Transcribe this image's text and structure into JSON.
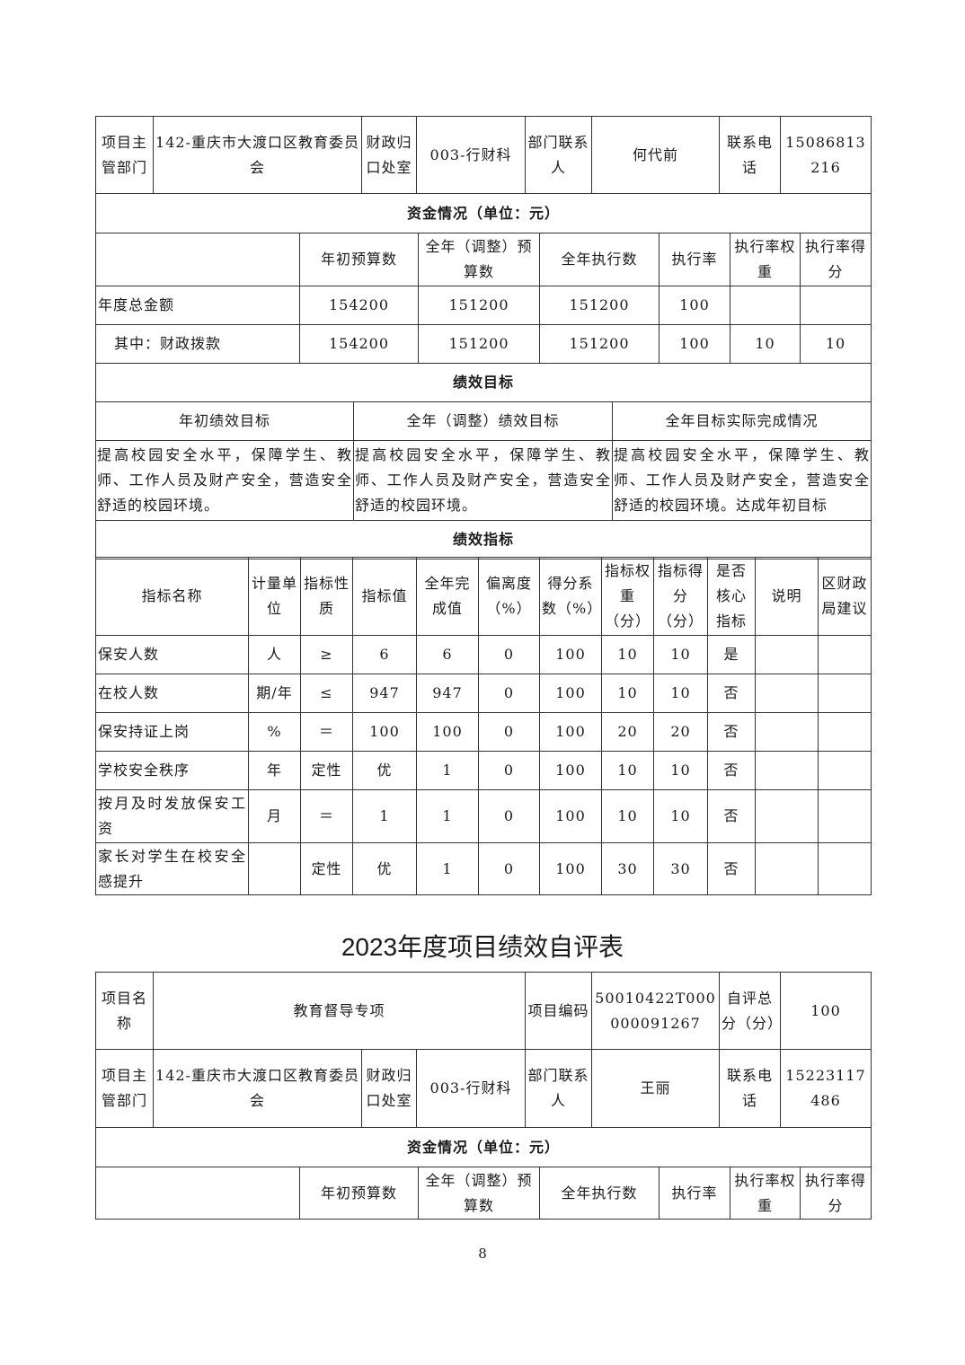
{
  "section1": {
    "dept_label": "项目主管部门",
    "dept_value": "142-重庆市大渡口区教育委员会",
    "finance_label": "财政归口处室",
    "finance_value": "003-行财科",
    "contact_label": "部门联系人",
    "contact_value": "何代前",
    "phone_label": "联系电话",
    "phone_value": "15086813216"
  },
  "funds": {
    "title": "资金情况（单位：元）",
    "headers": [
      "",
      "年初预算数",
      "全年（调整）预算数",
      "全年执行数",
      "执行率",
      "执行率权重",
      "执行率得分"
    ],
    "rows": [
      [
        "年度总金额",
        "154200",
        "151200",
        "151200",
        "100",
        "",
        ""
      ],
      [
        "其中：财政拨款",
        "154200",
        "151200",
        "151200",
        "100",
        "10",
        "10"
      ]
    ]
  },
  "goals": {
    "title": "绩效目标",
    "headers": [
      "年初绩效目标",
      "全年（调整）绩效目标",
      "全年目标实际完成情况"
    ],
    "contents": [
      "提高校园安全水平，保障学生、教师、工作人员及财产安全，营造安全舒适的校园环境。",
      "提高校园安全水平，保障学生、教师、工作人员及财产安全，营造安全舒适的校园环境。",
      "提高校园安全水平，保障学生、教师、工作人员及财产安全，营造安全舒适的校园环境。达成年初目标"
    ]
  },
  "indicators": {
    "title": "绩效指标",
    "headers": [
      "指标名称",
      "计量单位",
      "指标性质",
      "指标值",
      "全年完成值",
      "偏离度（%）",
      "得分系数（%）",
      "指标权重（分）",
      "指标得分（分）",
      "是否核心指标",
      "说明",
      "区财政局建议"
    ],
    "rows": [
      [
        "保安人数",
        "人",
        "≥",
        "6",
        "6",
        "0",
        "100",
        "10",
        "10",
        "是",
        "",
        ""
      ],
      [
        "在校人数",
        "期/年",
        "≤",
        "947",
        "947",
        "0",
        "100",
        "10",
        "10",
        "否",
        "",
        ""
      ],
      [
        "保安持证上岗",
        "%",
        "＝",
        "100",
        "100",
        "0",
        "100",
        "20",
        "20",
        "否",
        "",
        ""
      ],
      [
        "学校安全秩序",
        "年",
        "定性",
        "优",
        "1",
        "0",
        "100",
        "10",
        "10",
        "否",
        "",
        ""
      ],
      [
        "按月及时发放保安工资",
        "月",
        "＝",
        "1",
        "1",
        "0",
        "100",
        "10",
        "10",
        "否",
        "",
        ""
      ],
      [
        "家长对学生在校安全感提升",
        "",
        "定性",
        "优",
        "1",
        "0",
        "100",
        "30",
        "30",
        "否",
        "",
        ""
      ]
    ]
  },
  "doc_title": "2023年度项目绩效自评表",
  "section2": {
    "name_label": "项目名称",
    "name_value": "教育督导专项",
    "code_label": "项目编码",
    "code_value": "50010422T000000091267",
    "score_label": "自评总分（分）",
    "score_value": "100",
    "dept_label": "项目主管部门",
    "dept_value": "142-重庆市大渡口区教育委员会",
    "finance_label": "财政归口处室",
    "finance_value": "003-行财科",
    "contact_label": "部门联系人",
    "contact_value": "王丽",
    "phone_label": "联系电话",
    "phone_value": "15223117486"
  },
  "funds2": {
    "title": "资金情况（单位：元）",
    "headers": [
      "",
      "年初预算数",
      "全年（调整）预算数",
      "全年执行数",
      "执行率",
      "执行率权重",
      "执行率得分"
    ]
  },
  "page_number": "8"
}
